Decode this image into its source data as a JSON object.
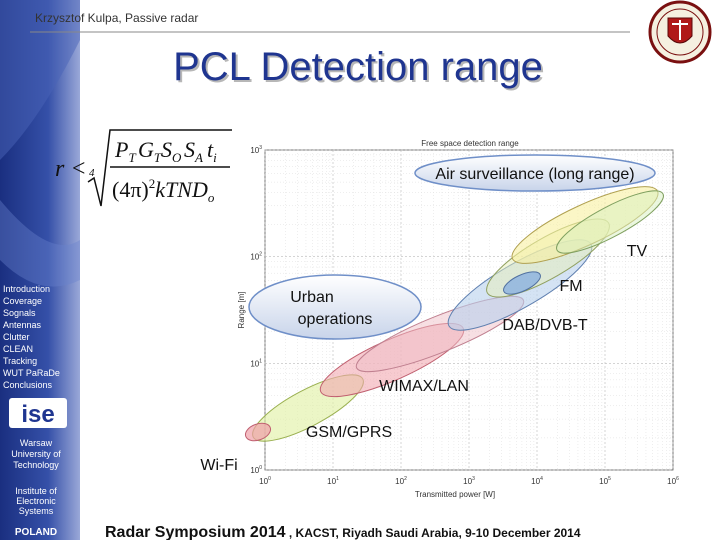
{
  "header": {
    "author": "Krzysztof  Kulpa, Passive radar",
    "title": "PCL Detection range"
  },
  "formula": {
    "lhs": "r <",
    "root_index": "4",
    "numerator": [
      [
        "P",
        "T"
      ],
      [
        "G",
        "T"
      ],
      [
        "S",
        "O"
      ],
      [
        "S",
        "A"
      ],
      [
        "t",
        "i"
      ]
    ],
    "denominator_base": "(4π)",
    "denominator_power": "2",
    "denominator_rest": "kTND",
    "denominator_sub": "o"
  },
  "plot": {
    "title": "Free space detection range",
    "x_label": "Transmitted power [W]",
    "y_label": "Range [m]",
    "x_ticks": [
      [
        "10",
        "0"
      ],
      [
        "10",
        "1"
      ],
      [
        "10",
        "2"
      ],
      [
        "10",
        "3"
      ],
      [
        "10",
        "4"
      ],
      [
        "10",
        "5"
      ],
      [
        "10",
        "6"
      ]
    ],
    "y_ticks": [
      [
        "10",
        "0"
      ],
      [
        "10",
        "1"
      ],
      [
        "10",
        "2"
      ],
      [
        "10",
        "3"
      ]
    ],
    "labels": {
      "air": "Air surveillance (long range)",
      "tv": "TV",
      "fm": "FM",
      "urban_1": "Urban",
      "urban_2": "operations",
      "dab": "DAB/DVB-T",
      "wimax": "WIMAX/LAN",
      "gsm": "GSM/GPRS",
      "wifi": "Wi-Fi"
    }
  },
  "sidebar": {
    "menu": [
      "Introduction",
      "Coverage",
      "Sognals",
      "Antennas",
      "Clutter",
      "CLEAN",
      "Tracking",
      "WUT PaRaDe",
      "Conclusions"
    ],
    "logo": "ise",
    "university": [
      "Warsaw",
      "University of",
      "Technology"
    ],
    "institute": [
      "Institute of",
      "Electronic",
      "Systems"
    ],
    "country": "POLAND"
  },
  "footer": {
    "event": "Radar Symposium 2014",
    "details": " , KACST, Riyadh  Saudi Arabia,  9-10 December 2014"
  }
}
